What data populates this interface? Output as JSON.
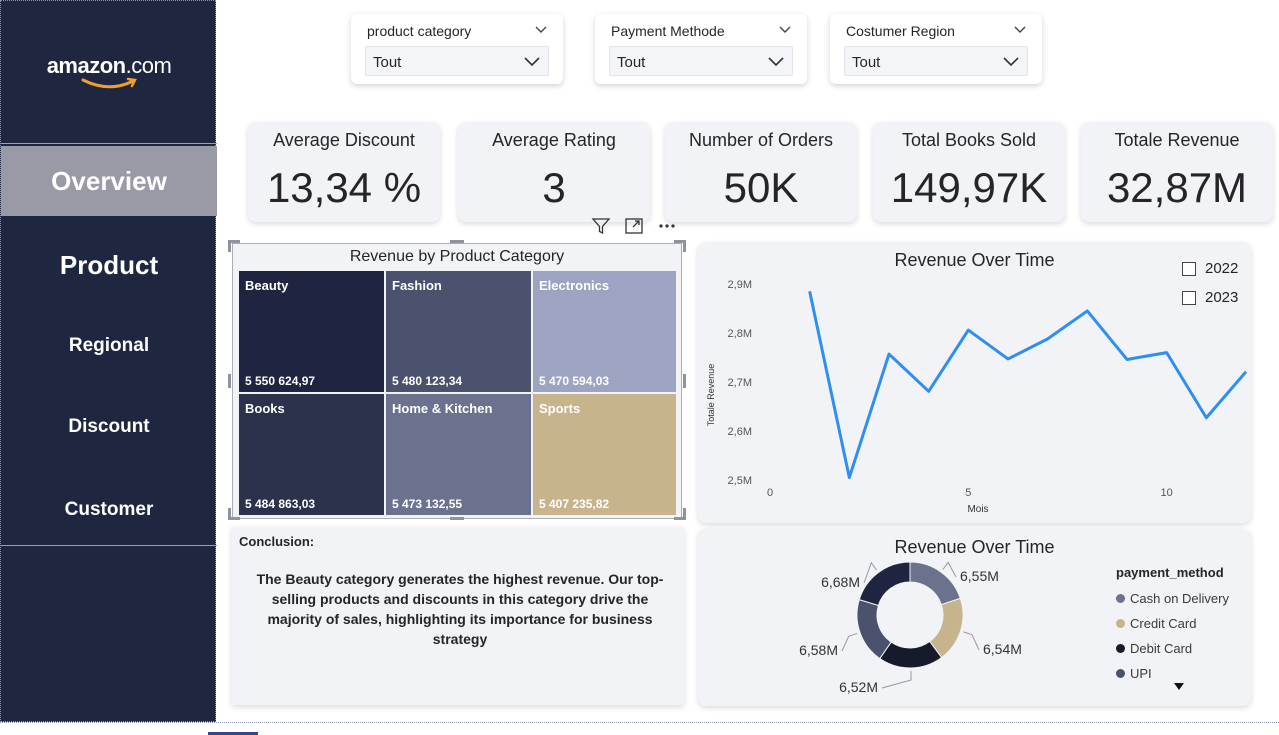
{
  "sidebar": {
    "logo_brand": "amazon",
    "logo_suffix": ".com",
    "items": [
      {
        "label": "Overview",
        "active": true
      },
      {
        "label": "Product"
      },
      {
        "label": "Regional"
      },
      {
        "label": "Discount"
      },
      {
        "label": "Customer"
      }
    ]
  },
  "filters": [
    {
      "title": "product category",
      "value": "Tout"
    },
    {
      "title": "Payment Methode",
      "value": "Tout"
    },
    {
      "title": "Costumer Region",
      "value": "Tout"
    }
  ],
  "kpis": [
    {
      "label": "Average Discount",
      "value": "13,34 %"
    },
    {
      "label": "Average Rating",
      "value": "3"
    },
    {
      "label": "Number of Orders",
      "value": "50K"
    },
    {
      "label": "Total Books Sold",
      "value": "149,97K"
    },
    {
      "label": "Totale Revenue",
      "value": "32,87M"
    }
  ],
  "colors": {
    "sidebar": "#1f2740",
    "line": "#2f8ff0",
    "beauty": "#1f2540",
    "fashion": "#4a526e",
    "electronics": "#9da4c2",
    "books": "#2c324c",
    "home_kitchen": "#6b728e",
    "sports": "#c7b48c"
  },
  "chart_data": [
    {
      "type": "treemap",
      "title": "Revenue by Product Category",
      "items": [
        {
          "label": "Beauty",
          "value": 5550624.97,
          "display": "5 550 624,97"
        },
        {
          "label": "Fashion",
          "value": 5480123.34,
          "display": "5 480 123,34"
        },
        {
          "label": "Electronics",
          "value": 5470594.03,
          "display": "5 470 594,03"
        },
        {
          "label": "Books",
          "value": 5484863.03,
          "display": "5 484 863,03"
        },
        {
          "label": "Home & Kitchen",
          "value": 5473132.55,
          "display": "5 473 132,55"
        },
        {
          "label": "Sports",
          "value": 5407235.82,
          "display": "5 407 235,82"
        }
      ]
    },
    {
      "type": "line",
      "title": "Revenue Over Time",
      "xlabel": "Mois",
      "ylabel": "Totale Revenue",
      "xticks": [
        0,
        5,
        10
      ],
      "yticks": [
        "2,5M",
        "2,6M",
        "2,7M",
        "2,8M",
        "2,9M"
      ],
      "ylim": [
        2.5,
        2.9
      ],
      "xlim": [
        0,
        12
      ],
      "x": [
        1,
        2,
        3,
        4,
        5,
        6,
        7,
        8,
        9,
        10,
        11,
        12
      ],
      "values": [
        2.885,
        2.505,
        2.757,
        2.681,
        2.806,
        2.747,
        2.788,
        2.845,
        2.746,
        2.76,
        2.627,
        2.721
      ],
      "legend": [
        "2022",
        "2023"
      ]
    },
    {
      "type": "pie",
      "title": "Revenue Over Time",
      "legend_title": "payment_method",
      "slices": [
        {
          "name": "Cash on Delivery",
          "label": "6,55M",
          "value": 6.55,
          "color": "#6b728e"
        },
        {
          "name": "Credit Card",
          "label": "6,54M",
          "value": 6.54,
          "color": "#c7b48c"
        },
        {
          "name": "Debit Card",
          "label": "6,52M",
          "value": 6.52,
          "color": "#161a2a"
        },
        {
          "name": "UPI",
          "label": "6,58M",
          "value": 6.58,
          "color": "#4a526e"
        },
        {
          "name": "",
          "label": "6,68M",
          "value": 6.68,
          "color": "#1f2540"
        }
      ]
    }
  ]
}
